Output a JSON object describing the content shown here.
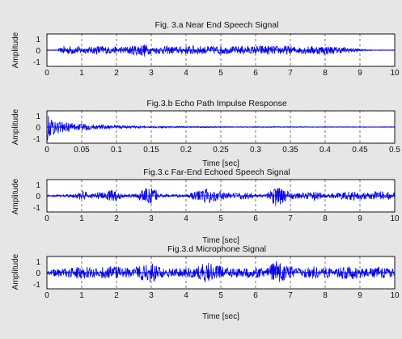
{
  "colors": {
    "signal": "#0000ee",
    "grid": "#3a3a3a",
    "axes_bg": "#ffffff",
    "figure_bg": "#e6e6e6"
  },
  "chart_data": [
    {
      "type": "line",
      "title": "Fig. 3.a Near End Speech Signal",
      "xlabel": "",
      "ylabel": "Amplitude",
      "xlim": [
        0,
        10
      ],
      "ylim": [
        -1,
        1
      ],
      "x_ticks": [
        "0",
        "1",
        "2",
        "3",
        "4",
        "5",
        "6",
        "7",
        "8",
        "9",
        "10"
      ],
      "y_ticks": [
        "1",
        "0",
        "-1"
      ],
      "grid": true,
      "series": [
        {
          "envelope": {
            "x": [
              0,
              0.3,
              0.5,
              0.9,
              1.2,
              1.5,
              1.8,
              2.1,
              2.4,
              2.8,
              3.0,
              3.4,
              3.8,
              4.2,
              4.6,
              5.0,
              5.3,
              5.6,
              5.9,
              6.2,
              6.6,
              6.9,
              7.2,
              7.6,
              8.0,
              8.3,
              8.6,
              8.9,
              9.1,
              9.4,
              10
            ],
            "amp": [
              0.02,
              0.02,
              0.28,
              0.24,
              0.18,
              0.3,
              0.22,
              0.2,
              0.28,
              0.42,
              0.2,
              0.26,
              0.22,
              0.3,
              0.24,
              0.28,
              0.2,
              0.28,
              0.24,
              0.3,
              0.26,
              0.28,
              0.2,
              0.26,
              0.28,
              0.22,
              0.18,
              0.12,
              0.05,
              0.02,
              0.02
            ]
          }
        }
      ]
    },
    {
      "type": "line",
      "title": "Fig.3.b Echo Path Impulse Response",
      "xlabel": "Time [sec]",
      "ylabel": "Amplitude",
      "xlim": [
        0,
        0.5
      ],
      "ylim": [
        -1,
        1
      ],
      "x_ticks": [
        "0",
        "0.05",
        "0.1",
        "0.15",
        "0.2",
        "0.25",
        "0.3",
        "0.35",
        "0.4",
        "0.45",
        "0.5"
      ],
      "y_ticks": [
        "1",
        "0",
        "-1"
      ],
      "grid": true,
      "series": [
        {
          "envelope": {
            "x": [
              0,
              0.005,
              0.02,
              0.05,
              0.1,
              0.15,
              0.2,
              0.3,
              0.4,
              0.5
            ],
            "amp": [
              0.9,
              0.55,
              0.35,
              0.2,
              0.1,
              0.06,
              0.04,
              0.03,
              0.02,
              0.02
            ]
          }
        }
      ]
    },
    {
      "type": "line",
      "title": "Fig.3.c Far-End Echoed Speech Signal",
      "xlabel": "Time [sec]",
      "ylabel": "Amplitude",
      "xlim": [
        0,
        10
      ],
      "ylim": [
        -1,
        1
      ],
      "x_ticks": [
        "0",
        "1",
        "2",
        "3",
        "4",
        "5",
        "6",
        "7",
        "8",
        "9",
        "10"
      ],
      "y_ticks": [
        "1",
        "0",
        "-1"
      ],
      "grid": true,
      "series": [
        {
          "envelope": {
            "x": [
              0,
              0.5,
              0.8,
              1.0,
              1.3,
              1.6,
              1.9,
              2.2,
              2.5,
              2.8,
              3.0,
              3.3,
              3.7,
              4.0,
              4.3,
              4.6,
              4.8,
              5.1,
              5.4,
              5.7,
              6.0,
              6.3,
              6.6,
              6.8,
              7.1,
              7.4,
              7.7,
              8.0,
              8.4,
              8.8,
              9.2,
              9.6,
              10
            ],
            "amp": [
              0.05,
              0.08,
              0.1,
              0.3,
              0.18,
              0.22,
              0.4,
              0.12,
              0.1,
              0.45,
              0.55,
              0.1,
              0.08,
              0.1,
              0.28,
              0.5,
              0.35,
              0.2,
              0.18,
              0.22,
              0.1,
              0.08,
              0.7,
              0.4,
              0.2,
              0.18,
              0.3,
              0.12,
              0.2,
              0.28,
              0.18,
              0.3,
              0.2
            ]
          }
        }
      ]
    },
    {
      "type": "line",
      "title": "Fig.3.d Microphone Signal",
      "xlabel": "Time [sec]",
      "ylabel": "Amplitude",
      "xlim": [
        0,
        10
      ],
      "ylim": [
        -1,
        1
      ],
      "x_ticks": [
        "0",
        "1",
        "2",
        "3",
        "4",
        "5",
        "6",
        "7",
        "8",
        "9",
        "10"
      ],
      "y_ticks": [
        "1",
        "0",
        "-1"
      ],
      "grid": true,
      "series": [
        {
          "envelope": {
            "x": [
              0,
              0.3,
              0.6,
              1.0,
              1.3,
              1.6,
              1.9,
              2.2,
              2.5,
              2.8,
              3.0,
              3.3,
              3.7,
              4.0,
              4.3,
              4.6,
              4.8,
              5.1,
              5.4,
              5.7,
              6.0,
              6.3,
              6.6,
              6.8,
              7.1,
              7.4,
              7.7,
              8.0,
              8.4,
              8.8,
              9.2,
              9.6,
              10
            ],
            "amp": [
              0.1,
              0.25,
              0.3,
              0.4,
              0.3,
              0.35,
              0.45,
              0.3,
              0.3,
              0.55,
              0.6,
              0.3,
              0.28,
              0.3,
              0.35,
              0.7,
              0.5,
              0.35,
              0.3,
              0.35,
              0.3,
              0.3,
              0.75,
              0.5,
              0.35,
              0.3,
              0.4,
              0.3,
              0.35,
              0.4,
              0.3,
              0.35,
              0.25
            ]
          }
        }
      ]
    }
  ]
}
